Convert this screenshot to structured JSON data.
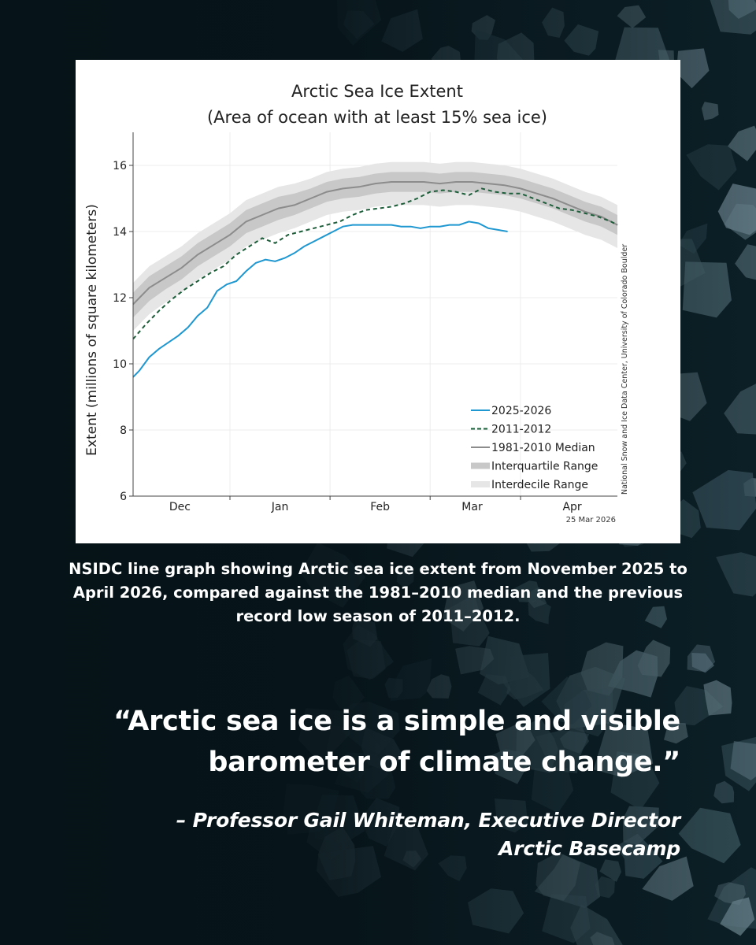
{
  "caption": "NSIDC line graph showing Arctic sea ice extent from November 2025 to April 2026, compared against the 1981–2010 median and the previous record low season of 2011–2012.",
  "quote": "“Arctic sea ice is a simple and visible barometer of climate change.”",
  "attribution": {
    "line1": "– Professor Gail Whiteman, Executive Director",
    "line2": "Arctic Basecamp"
  },
  "colors": {
    "series_2025": "#1f97d0",
    "series_2011": "#1d5e3a",
    "median": "#8c8c8c",
    "interquartile": "#c8c8c8",
    "interdecile": "#e6e6e6",
    "background": "#0a1a20"
  },
  "chart_data": {
    "type": "line",
    "title": "Arctic Sea Ice Extent",
    "subtitle": "(Area of ocean with at least 15% sea ice)",
    "ylabel": "Extent (millions of square kilometers)",
    "xlabel": "",
    "ylim": [
      6,
      17
    ],
    "yticks": [
      6,
      8,
      10,
      12,
      14,
      16
    ],
    "xlim": [
      0,
      150
    ],
    "month_ticks": [
      {
        "label": "Dec",
        "x": 14.5
      },
      {
        "label": "Jan",
        "x": 45.5
      },
      {
        "label": "Feb",
        "x": 76.5
      },
      {
        "label": "Mar",
        "x": 105
      },
      {
        "label": "Apr",
        "x": 136
      }
    ],
    "month_boundaries": [
      30,
      61,
      92,
      120
    ],
    "grid": true,
    "legend_position": "bottom-right",
    "date_stamp": "25 Mar 2026",
    "credit": "National Snow and Ice Data Center, University of Colorado Boulder",
    "x": [
      0,
      5,
      10,
      15,
      20,
      25,
      30,
      35,
      40,
      45,
      50,
      55,
      60,
      65,
      70,
      75,
      80,
      85,
      90,
      95,
      100,
      105,
      110,
      115,
      120,
      125,
      130,
      135,
      140,
      145,
      150
    ],
    "median": [
      11.8,
      12.3,
      12.6,
      12.9,
      13.3,
      13.6,
      13.9,
      14.3,
      14.5,
      14.7,
      14.8,
      15.0,
      15.2,
      15.3,
      15.35,
      15.45,
      15.5,
      15.5,
      15.5,
      15.45,
      15.5,
      15.5,
      15.45,
      15.4,
      15.3,
      15.15,
      15.0,
      14.8,
      14.6,
      14.45,
      14.2
    ],
    "iqr_low": [
      11.4,
      11.9,
      12.25,
      12.55,
      12.95,
      13.25,
      13.55,
      13.95,
      14.15,
      14.35,
      14.5,
      14.7,
      14.9,
      15.0,
      15.05,
      15.15,
      15.2,
      15.2,
      15.2,
      15.15,
      15.2,
      15.2,
      15.15,
      15.1,
      15.0,
      14.85,
      14.7,
      14.5,
      14.3,
      14.15,
      13.9
    ],
    "iqr_high": [
      12.15,
      12.65,
      12.95,
      13.25,
      13.65,
      13.95,
      14.25,
      14.65,
      14.85,
      15.05,
      15.15,
      15.3,
      15.5,
      15.6,
      15.65,
      15.75,
      15.8,
      15.8,
      15.8,
      15.75,
      15.8,
      15.8,
      15.75,
      15.7,
      15.6,
      15.45,
      15.3,
      15.1,
      14.9,
      14.75,
      14.5
    ],
    "idr_low": [
      11.0,
      11.5,
      11.85,
      12.15,
      12.55,
      12.85,
      13.15,
      13.55,
      13.75,
      13.95,
      14.1,
      14.3,
      14.5,
      14.6,
      14.65,
      14.75,
      14.8,
      14.8,
      14.8,
      14.75,
      14.8,
      14.8,
      14.75,
      14.7,
      14.6,
      14.45,
      14.3,
      14.1,
      13.9,
      13.75,
      13.5
    ],
    "idr_high": [
      12.45,
      12.95,
      13.25,
      13.55,
      13.95,
      14.25,
      14.55,
      14.95,
      15.15,
      15.35,
      15.45,
      15.6,
      15.8,
      15.9,
      15.95,
      16.05,
      16.1,
      16.1,
      16.1,
      16.05,
      16.1,
      16.1,
      16.05,
      16.0,
      15.9,
      15.75,
      15.6,
      15.4,
      15.2,
      15.05,
      14.8
    ],
    "series": [
      {
        "name": "2025-2026",
        "x": [
          0,
          2,
          5,
          8,
          11,
          14,
          17,
          20,
          23,
          26,
          29,
          32,
          35,
          38,
          41,
          44,
          47,
          50,
          53,
          56,
          59,
          62,
          65,
          68,
          71,
          74,
          77,
          80,
          83,
          86,
          89,
          92,
          95,
          98,
          101,
          104,
          107,
          110,
          113,
          116
        ],
        "y": [
          9.6,
          9.8,
          10.2,
          10.45,
          10.65,
          10.85,
          11.1,
          11.45,
          11.7,
          12.2,
          12.4,
          12.5,
          12.8,
          13.05,
          13.15,
          13.1,
          13.2,
          13.35,
          13.55,
          13.7,
          13.85,
          14.0,
          14.15,
          14.2,
          14.2,
          14.2,
          14.2,
          14.2,
          14.15,
          14.15,
          14.1,
          14.15,
          14.15,
          14.2,
          14.2,
          14.3,
          14.25,
          14.1,
          14.05,
          14.0
        ]
      },
      {
        "name": "2011-2012",
        "x": [
          0,
          4,
          8,
          12,
          16,
          20,
          24,
          28,
          32,
          36,
          40,
          44,
          48,
          52,
          56,
          60,
          64,
          68,
          72,
          76,
          80,
          84,
          88,
          92,
          96,
          100,
          104,
          108,
          112,
          116,
          120,
          124,
          128,
          132,
          136,
          140,
          144,
          148,
          150
        ],
        "y": [
          10.75,
          11.2,
          11.6,
          11.95,
          12.25,
          12.5,
          12.75,
          12.95,
          13.3,
          13.55,
          13.8,
          13.65,
          13.9,
          14.0,
          14.1,
          14.2,
          14.3,
          14.5,
          14.65,
          14.7,
          14.75,
          14.85,
          15.0,
          15.2,
          15.25,
          15.2,
          15.1,
          15.3,
          15.2,
          15.15,
          15.15,
          15.0,
          14.85,
          14.7,
          14.65,
          14.55,
          14.45,
          14.3,
          14.2
        ]
      },
      {
        "name": "1981-2010 Median"
      },
      {
        "name": "Interquartile Range"
      },
      {
        "name": "Interdecile Range"
      }
    ]
  }
}
